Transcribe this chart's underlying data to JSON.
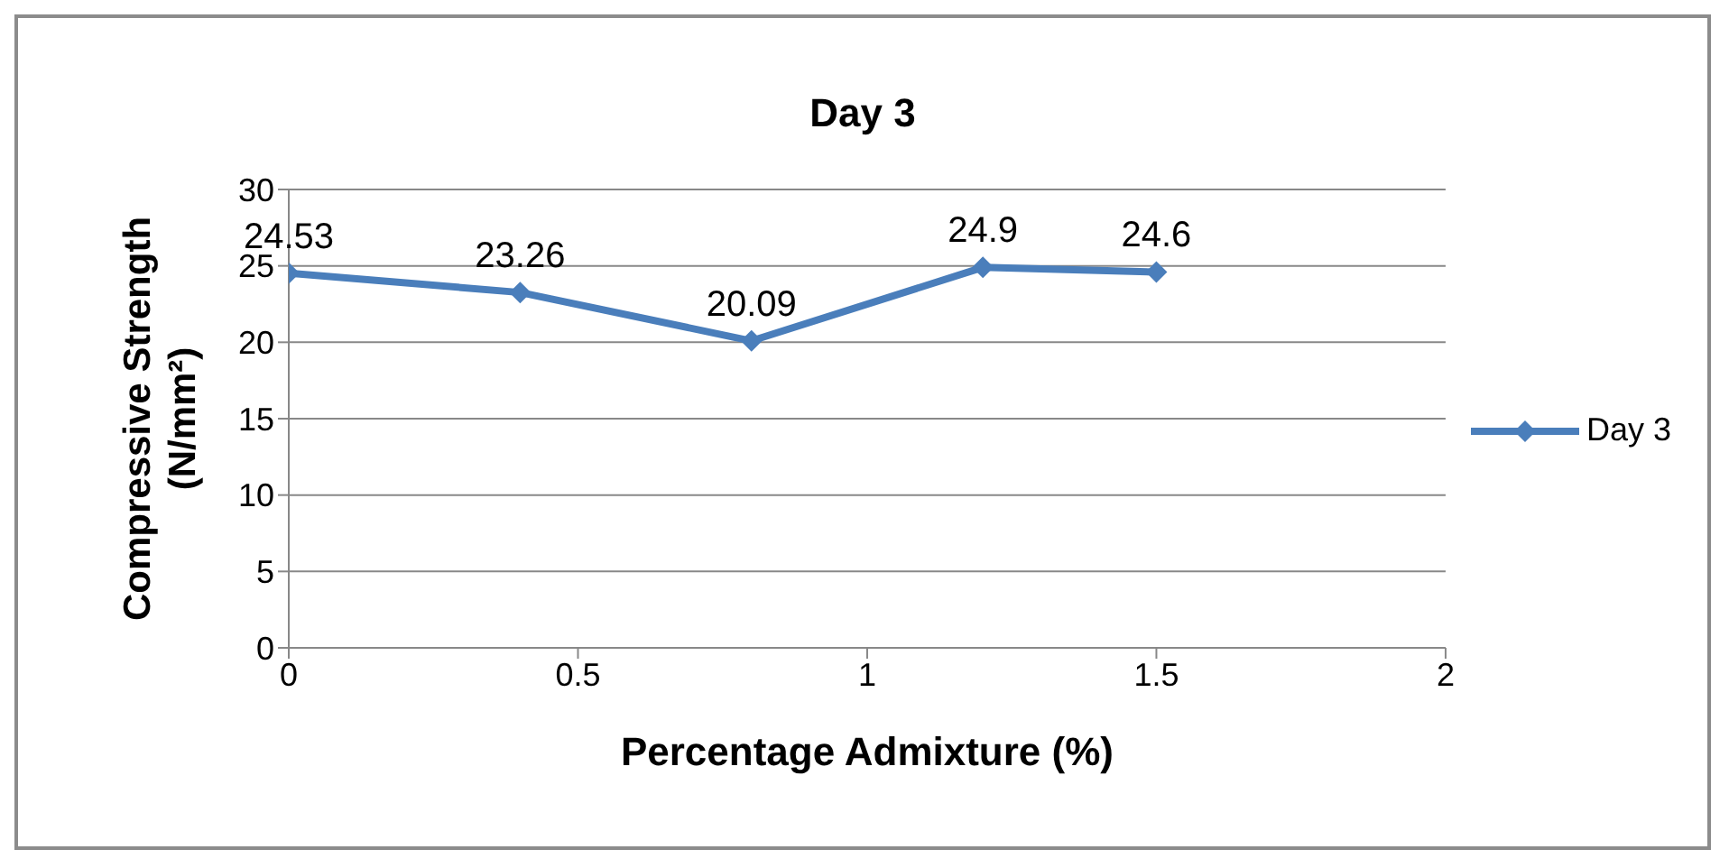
{
  "chart_data": {
    "type": "line",
    "title": "Day 3",
    "xlabel": "Percentage Admixture (%)",
    "ylabel": "Compressive Strength (N/mm²)",
    "x": [
      0,
      0.4,
      0.8,
      1.2,
      1.5
    ],
    "series": [
      {
        "name": "Day 3",
        "color": "#4a7ebb",
        "values": [
          24.53,
          23.26,
          20.09,
          24.9,
          24.6
        ]
      }
    ],
    "xlim": [
      0,
      2
    ],
    "xticks": [
      0,
      0.5,
      1,
      1.5,
      2
    ],
    "ylim": [
      0,
      30
    ],
    "yticks": [
      0,
      5,
      10,
      15,
      20,
      25,
      30
    ],
    "grid": "y",
    "legend": "right",
    "marker": "diamond",
    "data_labels": true
  }
}
